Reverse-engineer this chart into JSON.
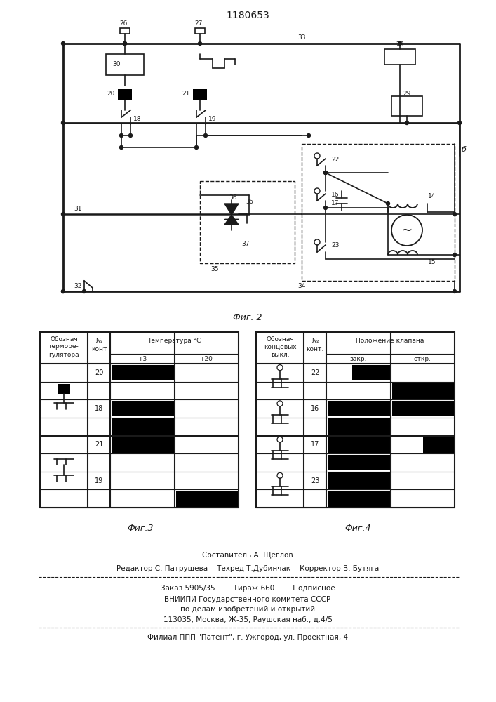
{
  "title": "1180653",
  "lc": "#1a1a1a",
  "footer_lines": [
    "Составитель А. Щеглов",
    "Редактор С. Патрушева    Техред Т.Дубинчак    Корректор В. Бутяга",
    "Заказ 5905/35        Тираж 660        Подписное",
    "ВНИИПИ Государственного комитета СССР",
    "по делам изобретений и открытий",
    "113035, Москва, Ж-35, Раушская наб., д.4/5",
    "Филиал ППП \"Патент\", г. Ужгород, ул. Проектная, 4"
  ]
}
